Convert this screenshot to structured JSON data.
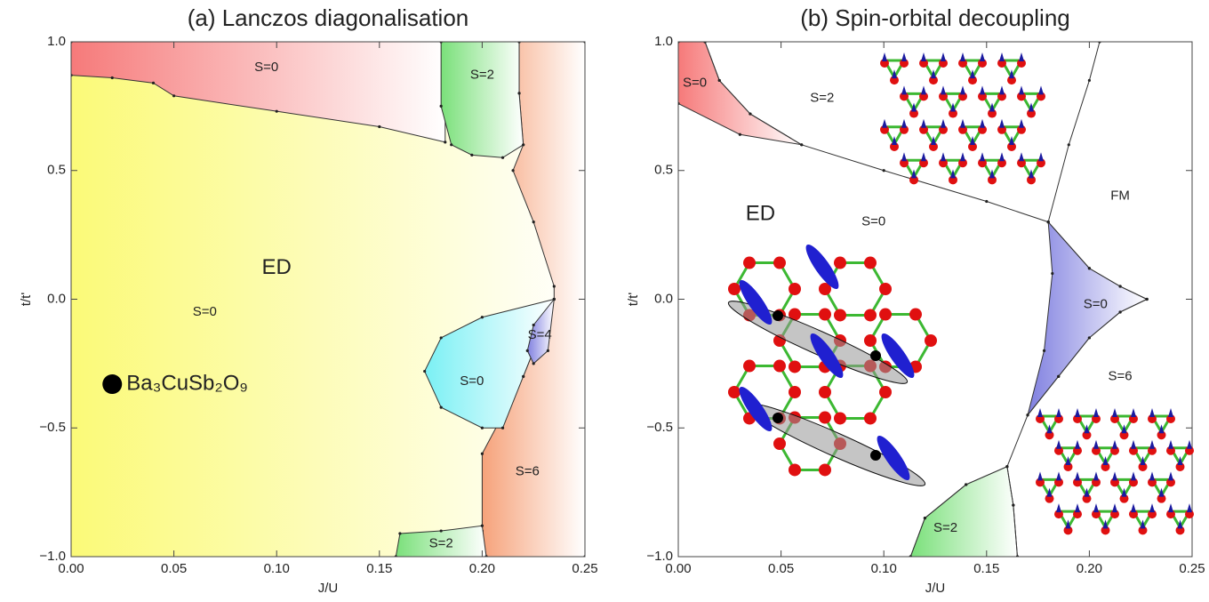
{
  "chart_data": [
    {
      "type": "phase_diagram",
      "title": "(a) Lanczos diagonalisation",
      "xlabel": "J/U",
      "ylabel": "t/t'",
      "xlim": [
        0,
        0.25
      ],
      "ylim": [
        -1,
        1
      ],
      "xticks": [
        {
          "value": 0,
          "label": "0.00"
        },
        {
          "value": 0.05,
          "label": "0.05"
        },
        {
          "value": 0.1,
          "label": "0.10"
        },
        {
          "value": 0.15,
          "label": "0.15"
        },
        {
          "value": 0.2,
          "label": "0.20"
        },
        {
          "value": 0.25,
          "label": "0.25"
        }
      ],
      "yticks": [
        {
          "value": -1,
          "label": "−1.0"
        },
        {
          "value": -0.5,
          "label": "−0.5"
        },
        {
          "value": 0,
          "label": "0.0"
        },
        {
          "value": 0.5,
          "label": "0.5"
        },
        {
          "value": 1,
          "label": "1.0"
        }
      ],
      "regions": [
        {
          "color": "#fbfa78",
          "x": [
            0,
            0.25,
            0.25,
            0
          ],
          "y": [
            1,
            1,
            -1,
            -1
          ]
        },
        {
          "color": "#f67a7a",
          "x": [
            0,
            0.182,
            0.182,
            0.182,
            0.15,
            0.1,
            0.05,
            0.04,
            0.02,
            0
          ],
          "y": [
            1,
            1,
            0.8,
            0.61,
            0.67,
            0.73,
            0.79,
            0.84,
            0.86,
            0.87
          ]
        },
        {
          "color": "#f6a27a",
          "x": [
            0.218,
            0.25,
            0.25,
            0.202,
            0.2,
            0.2,
            0.21,
            0.22,
            0.235,
            0.235,
            0.225,
            0.215,
            0.22,
            0.218
          ],
          "y": [
            1,
            1,
            -1,
            -1,
            -0.9,
            -0.6,
            -0.45,
            -0.3,
            0,
            0.05,
            0.3,
            0.5,
            0.6,
            0.8
          ]
        },
        {
          "color": "#7ae07a",
          "x": [
            0.18,
            0.218,
            0.218,
            0.22,
            0.21,
            0.195,
            0.185,
            0.18
          ],
          "y": [
            1,
            1,
            0.8,
            0.6,
            0.55,
            0.56,
            0.6,
            0.75
          ]
        },
        {
          "color": "#7af0f4",
          "x": [
            0.235,
            0.2,
            0.18,
            0.172,
            0.18,
            0.2,
            0.21,
            0.22,
            0.23
          ],
          "y": [
            0,
            -0.07,
            -0.15,
            -0.28,
            -0.42,
            -0.5,
            -0.5,
            -0.3,
            -0.1
          ]
        },
        {
          "color": "#8080e0",
          "x": [
            0.235,
            0.225,
            0.222,
            0.225,
            0.232
          ],
          "y": [
            0,
            -0.1,
            -0.2,
            -0.25,
            -0.2
          ]
        },
        {
          "color": "#7ae07a",
          "x": [
            0.158,
            0.16,
            0.18,
            0.2,
            0.202
          ],
          "y": [
            -1,
            -0.91,
            -0.9,
            -0.88,
            -1
          ]
        }
      ],
      "lines": [],
      "main_label": {
        "text": "ED",
        "x": 0.1,
        "y": 0.12
      },
      "annotations": [
        {
          "text": "S=0",
          "x": 0.095,
          "y": 0.9
        },
        {
          "text": "S=2",
          "x": 0.2,
          "y": 0.87
        },
        {
          "text": "S=0",
          "x": 0.065,
          "y": -0.05
        },
        {
          "text": "S=4",
          "x": 0.228,
          "y": -0.14
        },
        {
          "text": "S=0",
          "x": 0.195,
          "y": -0.32
        },
        {
          "text": "S=6",
          "x": 0.222,
          "y": -0.67
        },
        {
          "text": "S=2",
          "x": 0.18,
          "y": -0.95
        }
      ],
      "points": [
        {
          "label": "Ba₃CuSb₂O₉",
          "x": 0.02,
          "y": -0.33
        }
      ]
    },
    {
      "type": "phase_diagram",
      "title": "(b) Spin-orbital decoupling",
      "xlabel": "J/U",
      "ylabel": "t/t'",
      "xlim": [
        0,
        0.25
      ],
      "ylim": [
        -1,
        1
      ],
      "xticks": [
        {
          "value": 0,
          "label": "0.00"
        },
        {
          "value": 0.05,
          "label": "0.05"
        },
        {
          "value": 0.1,
          "label": "0.10"
        },
        {
          "value": 0.15,
          "label": "0.15"
        },
        {
          "value": 0.2,
          "label": "0.20"
        },
        {
          "value": 0.25,
          "label": "0.25"
        }
      ],
      "yticks": [
        {
          "value": -1,
          "label": "−1.0"
        },
        {
          "value": -0.5,
          "label": "−0.5"
        },
        {
          "value": 0,
          "label": "0.0"
        },
        {
          "value": 0.5,
          "label": "0.5"
        },
        {
          "value": 1,
          "label": "1.0"
        }
      ],
      "regions": [
        {
          "color": "#f67a7a",
          "x": [
            0,
            0.013,
            0.02,
            0.035,
            0.06,
            0.03,
            0
          ],
          "y": [
            1,
            1,
            0.85,
            0.72,
            0.6,
            0.64,
            0.76
          ]
        },
        {
          "color": "#8080e0",
          "x": [
            0.18,
            0.2,
            0.215,
            0.228,
            0.215,
            0.2,
            0.185,
            0.17,
            0.178,
            0.182
          ],
          "y": [
            0.3,
            0.12,
            0.05,
            0,
            -0.05,
            -0.15,
            -0.3,
            -0.45,
            -0.2,
            0.1
          ]
        },
        {
          "color": "#7ae07a",
          "x": [
            0.113,
            0.12,
            0.14,
            0.16,
            0.163,
            0.165
          ],
          "y": [
            -1,
            -0.85,
            -0.72,
            -0.65,
            -0.8,
            -1
          ]
        }
      ],
      "lines": [
        {
          "x": [
            0.013,
            0.02,
            0.035,
            0.06,
            0.1,
            0.15,
            0.18
          ],
          "y": [
            1,
            0.85,
            0.72,
            0.6,
            0.5,
            0.38,
            0.3
          ]
        },
        {
          "x": [
            0.18,
            0.19,
            0.2,
            0.205
          ],
          "y": [
            0.3,
            0.6,
            0.85,
            1
          ]
        },
        {
          "x": [
            0.18,
            0.2,
            0.215,
            0.228
          ],
          "y": [
            0.3,
            0.12,
            0.05,
            0
          ]
        },
        {
          "x": [
            0.228,
            0.215,
            0.2,
            0.185,
            0.17,
            0.16,
            0.163,
            0.165
          ],
          "y": [
            0,
            -0.05,
            -0.15,
            -0.3,
            -0.45,
            -0.65,
            -0.8,
            -1
          ]
        },
        {
          "x": [
            0.16,
            0.14,
            0.12,
            0.113
          ],
          "y": [
            -0.65,
            -0.72,
            -0.85,
            -1
          ]
        }
      ],
      "main_label": {
        "text": "ED",
        "x": 0.04,
        "y": 0.33
      },
      "annotations": [
        {
          "text": "S=0",
          "x": 0.008,
          "y": 0.84
        },
        {
          "text": "S=2",
          "x": 0.07,
          "y": 0.78
        },
        {
          "text": "FM",
          "x": 0.215,
          "y": 0.4
        },
        {
          "text": "S=0",
          "x": 0.095,
          "y": 0.3
        },
        {
          "text": "S=0",
          "x": 0.203,
          "y": -0.02
        },
        {
          "text": "S=6",
          "x": 0.215,
          "y": -0.3
        },
        {
          "text": "S=2",
          "x": 0.13,
          "y": -0.89
        }
      ],
      "points": []
    }
  ]
}
